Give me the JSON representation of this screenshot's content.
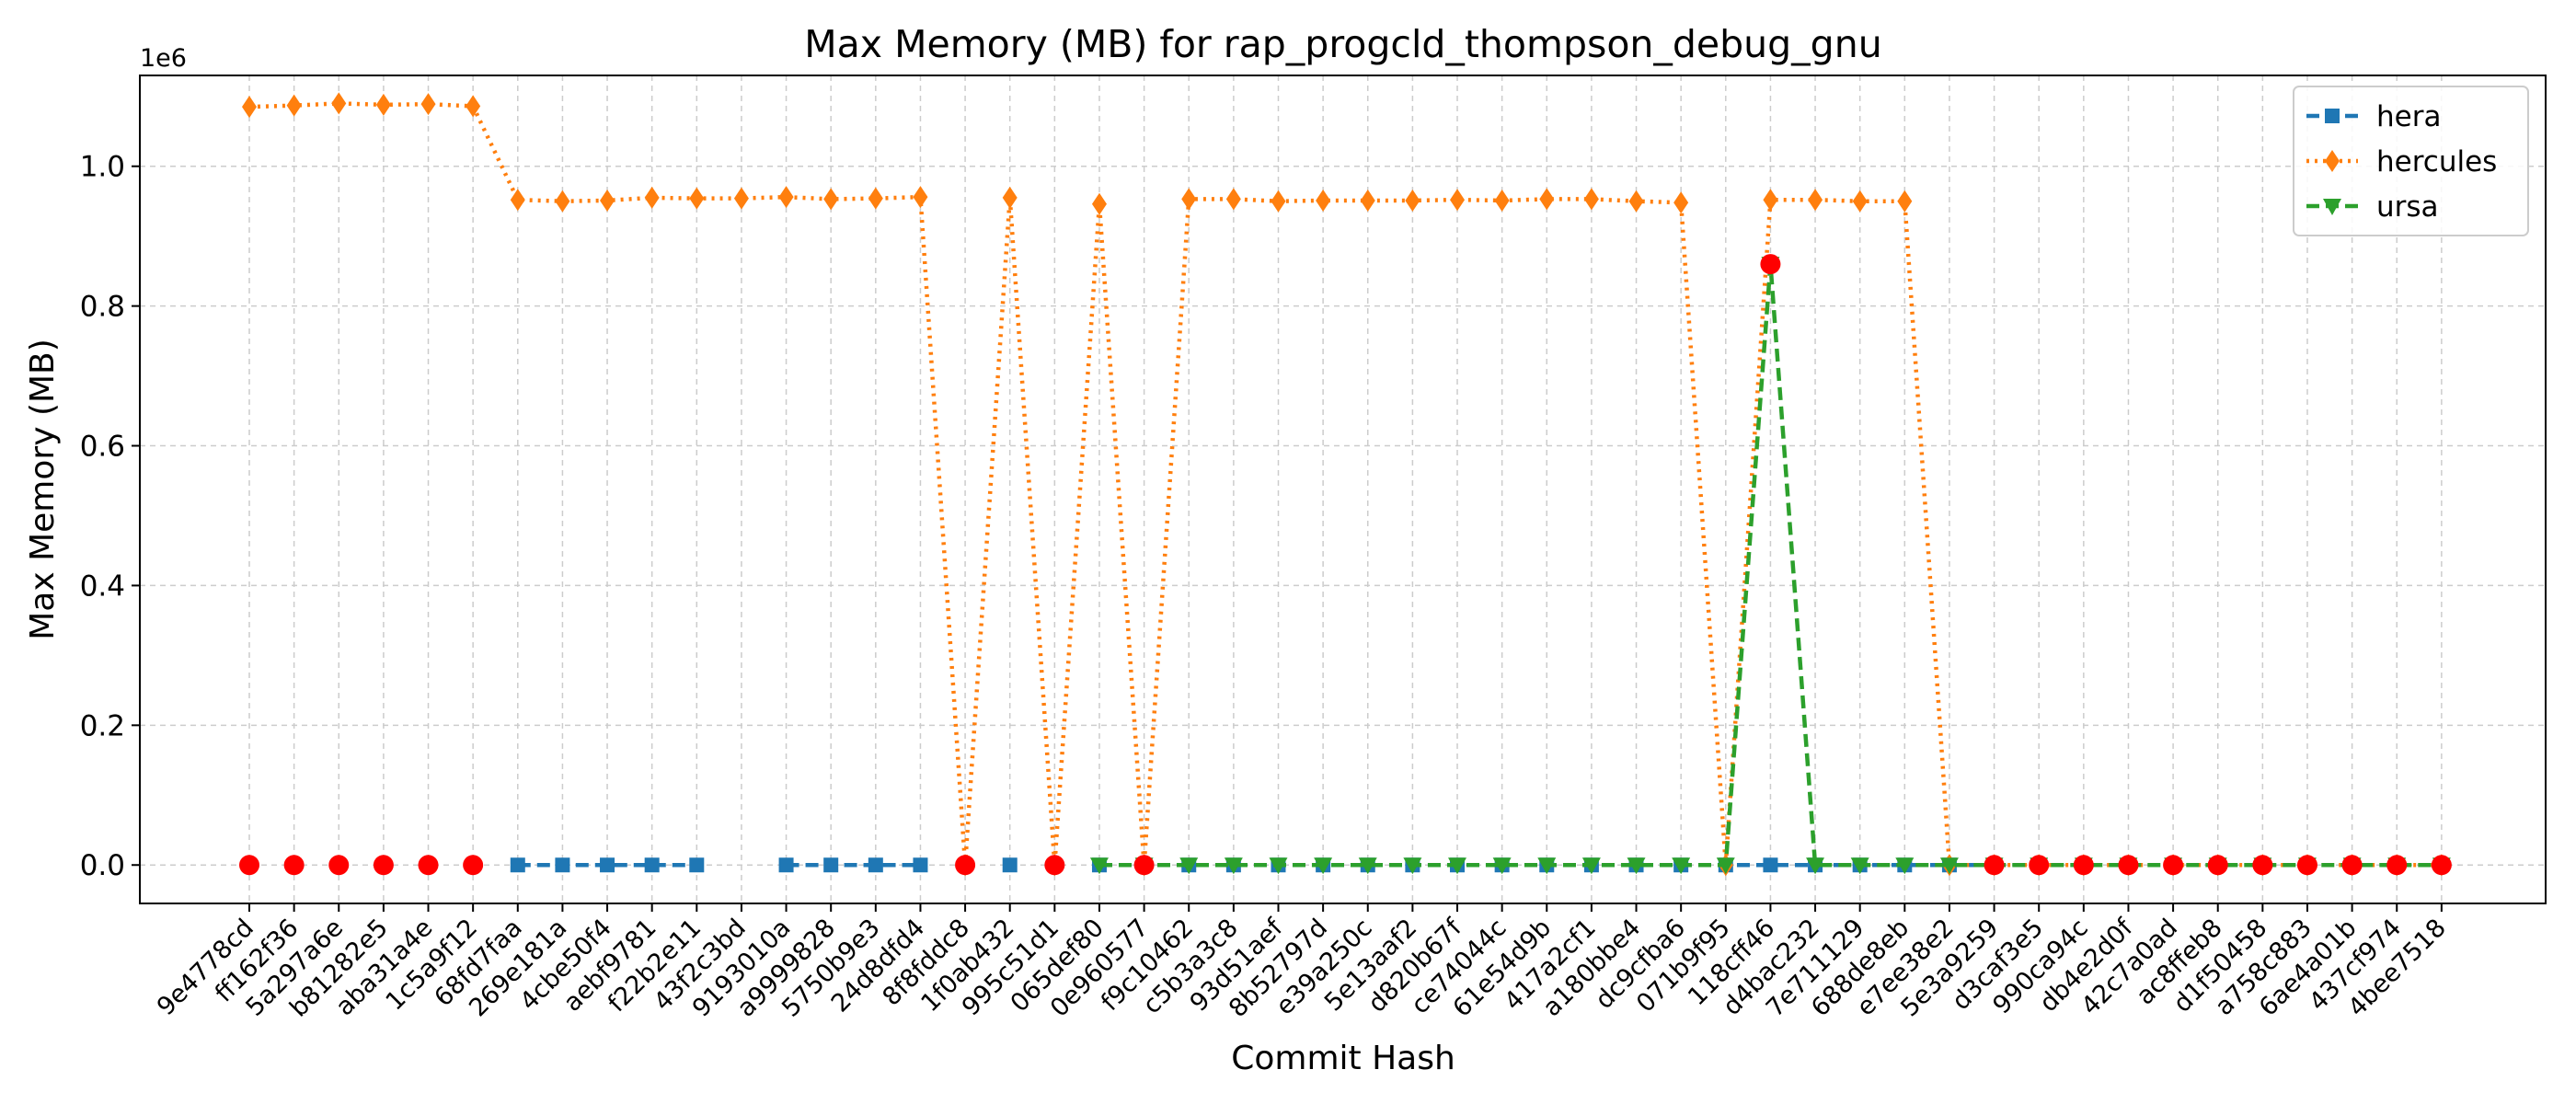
{
  "chart_data": {
    "type": "line",
    "title": "Max Memory (MB) for rap_progcld_thompson_debug_gnu",
    "xlabel": "Commit Hash",
    "ylabel": "Max Memory (MB)",
    "y_offset_text": "1e6",
    "y_scale_factor": 1000000,
    "ylim": [
      -0.055,
      1.13
    ],
    "yticks": [
      0.0,
      0.2,
      0.4,
      0.6,
      0.8,
      1.0
    ],
    "ytick_labels": [
      "0.0",
      "0.2",
      "0.4",
      "0.6",
      "0.8",
      "1.0"
    ],
    "grid": true,
    "legend_position": "top-right",
    "categories": [
      "9e4778cd",
      "ff162f36",
      "5a297a6e",
      "b81282e5",
      "aba31a4e",
      "1c5a9f12",
      "68fd7faa",
      "269e181a",
      "4cbe50f4",
      "aebf9781",
      "f22b2e11",
      "43f2c3bd",
      "9193010a",
      "a9999828",
      "5750b9e3",
      "24d8dfd4",
      "8f8fddc8",
      "1f0ab432",
      "995c51d1",
      "065def80",
      "0e960577",
      "f9c10462",
      "c5b3a3c8",
      "93d51aef",
      "8b52797d",
      "e39a250c",
      "5e13aaf2",
      "d820b67f",
      "ce74044c",
      "61e54d9b",
      "417a2cf1",
      "a180bbe4",
      "dc9cfba6",
      "071b9f95",
      "118cff46",
      "d4bac232",
      "7e711129",
      "688de8eb",
      "e7ee38e2",
      "5e3a9259",
      "d3caf3e5",
      "990ca94c",
      "db4e2d0f",
      "42c7a0ad",
      "ac8ffeb8",
      "d1f50458",
      "a758c883",
      "6ae4a01b",
      "437cf974",
      "4bee7518"
    ],
    "series": [
      {
        "name": "hera",
        "color": "#1f77b4",
        "marker": "square",
        "linestyle": "dashed",
        "values": [
          null,
          null,
          null,
          null,
          null,
          null,
          0,
          0,
          0,
          0,
          0,
          null,
          0,
          0,
          0,
          0,
          null,
          0,
          null,
          0,
          0,
          0,
          0,
          0,
          0,
          0,
          0,
          0,
          0,
          0,
          0,
          0,
          0,
          0,
          0,
          0,
          0,
          0,
          0,
          0,
          null,
          null,
          null,
          null,
          null,
          null,
          null,
          null,
          null,
          null
        ]
      },
      {
        "name": "hercules",
        "color": "#ff7f0e",
        "marker": "thin-diamond",
        "linestyle": "dotted",
        "values": [
          1.085,
          1.087,
          1.09,
          1.088,
          1.089,
          1.086,
          0.952,
          0.95,
          0.951,
          0.955,
          0.954,
          0.954,
          0.956,
          0.953,
          0.954,
          0.956,
          0,
          0.955,
          0,
          0.946,
          0,
          0.953,
          0.953,
          0.95,
          0.951,
          0.951,
          0.951,
          0.952,
          0.951,
          0.953,
          0.953,
          0.95,
          0.948,
          0,
          0.952,
          0.952,
          0.95,
          0.95,
          0,
          0,
          0,
          0,
          0,
          0,
          0,
          0,
          0,
          0,
          0,
          0
        ]
      },
      {
        "name": "ursa",
        "color": "#2ca02c",
        "marker": "triangle-down",
        "linestyle": "dashed",
        "values": [
          null,
          null,
          null,
          null,
          null,
          null,
          null,
          null,
          null,
          null,
          null,
          null,
          null,
          null,
          null,
          null,
          null,
          null,
          null,
          0,
          0,
          0,
          0,
          0,
          0,
          0,
          0,
          0,
          0,
          0,
          0,
          0,
          0,
          0,
          0.86,
          0,
          0,
          0,
          0,
          0,
          0,
          0,
          0,
          0,
          0,
          0,
          0,
          0,
          0,
          0
        ]
      }
    ],
    "failure_markers": {
      "color": "#ff0000",
      "x": [
        "9e4778cd",
        "ff162f36",
        "5a297a6e",
        "b81282e5",
        "aba31a4e",
        "1c5a9f12",
        "8f8fddc8",
        "995c51d1",
        "0e960577",
        "118cff46",
        "5e3a9259",
        "d3caf3e5",
        "990ca94c",
        "db4e2d0f",
        "42c7a0ad",
        "ac8ffeb8",
        "d1f50458",
        "a758c883",
        "6ae4a01b",
        "437cf974",
        "4bee7518"
      ],
      "y": [
        0,
        0,
        0,
        0,
        0,
        0,
        0,
        0,
        0,
        0.86,
        0,
        0,
        0,
        0,
        0,
        0,
        0,
        0,
        0,
        0,
        0
      ]
    }
  }
}
